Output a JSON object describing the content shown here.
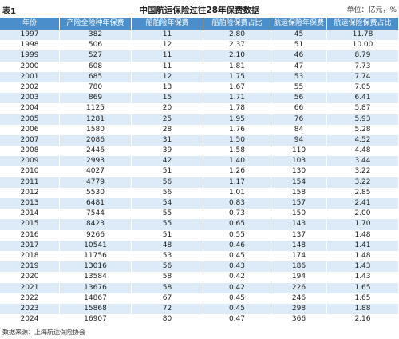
{
  "header": {
    "label": "表1",
    "title": "中国航运保险过往28年保费数据",
    "unit": "单位：亿元，%"
  },
  "table": {
    "columns": [
      "年份",
      "产险全险种年保费",
      "船舶险年保费",
      "船舶险保费占比",
      "航运保险年保费",
      "航运保险保费占比"
    ],
    "rows": [
      [
        "1997",
        "382",
        "11",
        "2.80",
        "45",
        "11.78"
      ],
      [
        "1998",
        "506",
        "12",
        "2.37",
        "51",
        "10.00"
      ],
      [
        "1999",
        "527",
        "11",
        "2.10",
        "46",
        "8.79"
      ],
      [
        "2000",
        "608",
        "11",
        "1.81",
        "47",
        "7.73"
      ],
      [
        "2001",
        "685",
        "12",
        "1.75",
        "53",
        "7.74"
      ],
      [
        "2002",
        "780",
        "13",
        "1.67",
        "55",
        "7.05"
      ],
      [
        "2003",
        "869",
        "15",
        "1.71",
        "56",
        "6.41"
      ],
      [
        "2004",
        "1125",
        "20",
        "1.78",
        "66",
        "5.87"
      ],
      [
        "2005",
        "1281",
        "25",
        "1.95",
        "76",
        "5.93"
      ],
      [
        "2006",
        "1580",
        "28",
        "1.76",
        "84",
        "5.28"
      ],
      [
        "2007",
        "2086",
        "31",
        "1.50",
        "94",
        "4.52"
      ],
      [
        "2008",
        "2446",
        "39",
        "1.58",
        "110",
        "4.48"
      ],
      [
        "2009",
        "2993",
        "42",
        "1.40",
        "103",
        "3.44"
      ],
      [
        "2010",
        "4027",
        "51",
        "1.26",
        "130",
        "3.22"
      ],
      [
        "2011",
        "4779",
        "56",
        "1.17",
        "154",
        "3.22"
      ],
      [
        "2012",
        "5530",
        "56",
        "1.01",
        "158",
        "2.85"
      ],
      [
        "2013",
        "6481",
        "54",
        "0.83",
        "157",
        "2.41"
      ],
      [
        "2014",
        "7544",
        "55",
        "0.73",
        "150",
        "2.00"
      ],
      [
        "2015",
        "8423",
        "55",
        "0.65",
        "143",
        "1.70"
      ],
      [
        "2016",
        "9266",
        "51",
        "0.55",
        "137",
        "1.48"
      ],
      [
        "2017",
        "10541",
        "48",
        "0.46",
        "148",
        "1.41"
      ],
      [
        "2018",
        "11756",
        "53",
        "0.45",
        "174",
        "1.48"
      ],
      [
        "2019",
        "13016",
        "56",
        "0.43",
        "186",
        "1.43"
      ],
      [
        "2020",
        "13584",
        "58",
        "0.42",
        "194",
        "1.43"
      ],
      [
        "2021",
        "13676",
        "58",
        "0.42",
        "226",
        "1.65"
      ],
      [
        "2022",
        "14867",
        "67",
        "0.45",
        "246",
        "1.65"
      ],
      [
        "2023",
        "15868",
        "72",
        "0.45",
        "298",
        "1.88"
      ],
      [
        "2024",
        "16907",
        "80",
        "0.47",
        "366",
        "2.16"
      ]
    ]
  },
  "footer": {
    "source": "数据来源：上海航运保险协会"
  }
}
